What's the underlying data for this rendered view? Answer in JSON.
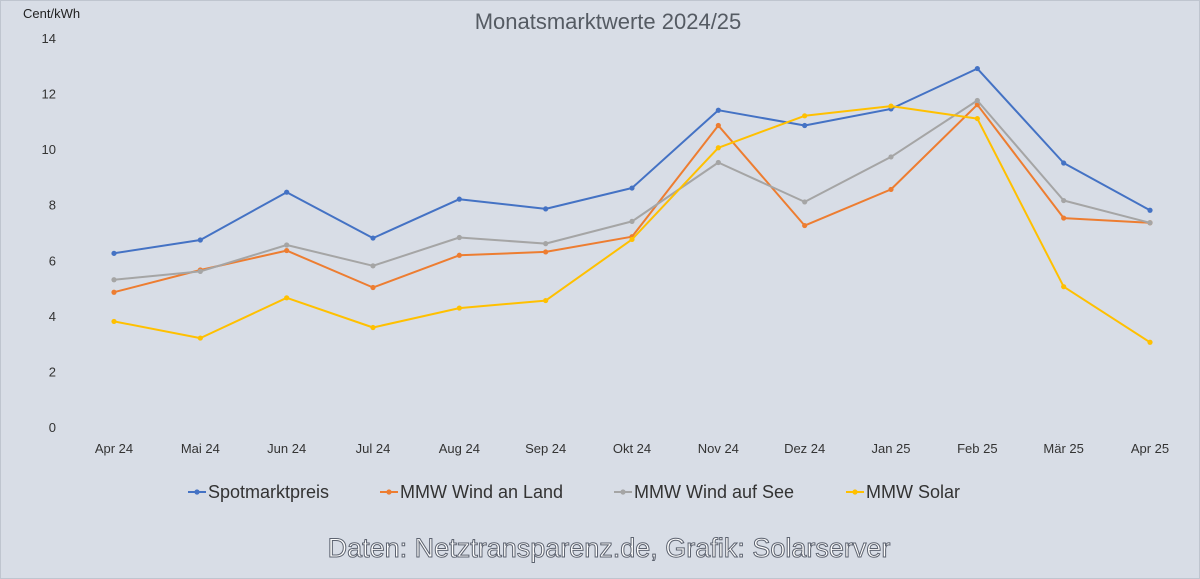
{
  "chart_data": {
    "type": "line",
    "title": "Monatsmarktwerte 2024/25",
    "ylabel": "Cent/kWh",
    "xlabel": "",
    "ylim": [
      0,
      14
    ],
    "yticks": [
      0,
      2,
      4,
      6,
      8,
      10,
      12,
      14
    ],
    "grid": false,
    "legend_position": "bottom",
    "categories": [
      "Apr 24",
      "Mai 24",
      "Jun 24",
      "Jul 24",
      "Aug 24",
      "Sep 24",
      "Okt 24",
      "Nov 24",
      "Dez 24",
      "Jan 25",
      "Feb 25",
      "Mär 25",
      "Apr 25"
    ],
    "series": [
      {
        "name": "Spotmarktpreis",
        "color": "#4472c4",
        "values": [
          6.25,
          6.73,
          8.45,
          6.8,
          8.2,
          7.85,
          8.6,
          11.4,
          10.85,
          11.45,
          12.9,
          9.5,
          7.8
        ]
      },
      {
        "name": "MMW Wind an Land",
        "color": "#ed7d31",
        "values": [
          4.85,
          5.65,
          6.35,
          5.02,
          6.18,
          6.3,
          6.85,
          10.85,
          7.25,
          8.55,
          11.6,
          7.52,
          7.35
        ]
      },
      {
        "name": "MMW Wind auf See",
        "color": "#a5a5a5",
        "values": [
          5.3,
          5.6,
          6.55,
          5.8,
          6.82,
          6.6,
          7.4,
          9.52,
          8.1,
          9.72,
          11.75,
          8.15,
          7.35
        ]
      },
      {
        "name": "MMW Solar",
        "color": "#ffc000",
        "values": [
          3.8,
          3.2,
          4.65,
          3.58,
          4.28,
          4.55,
          6.75,
          10.05,
          11.2,
          11.55,
          11.1,
          5.05,
          3.05
        ]
      }
    ]
  },
  "credit": "Daten: Netztransparenz.de, Grafik: Solarserver"
}
